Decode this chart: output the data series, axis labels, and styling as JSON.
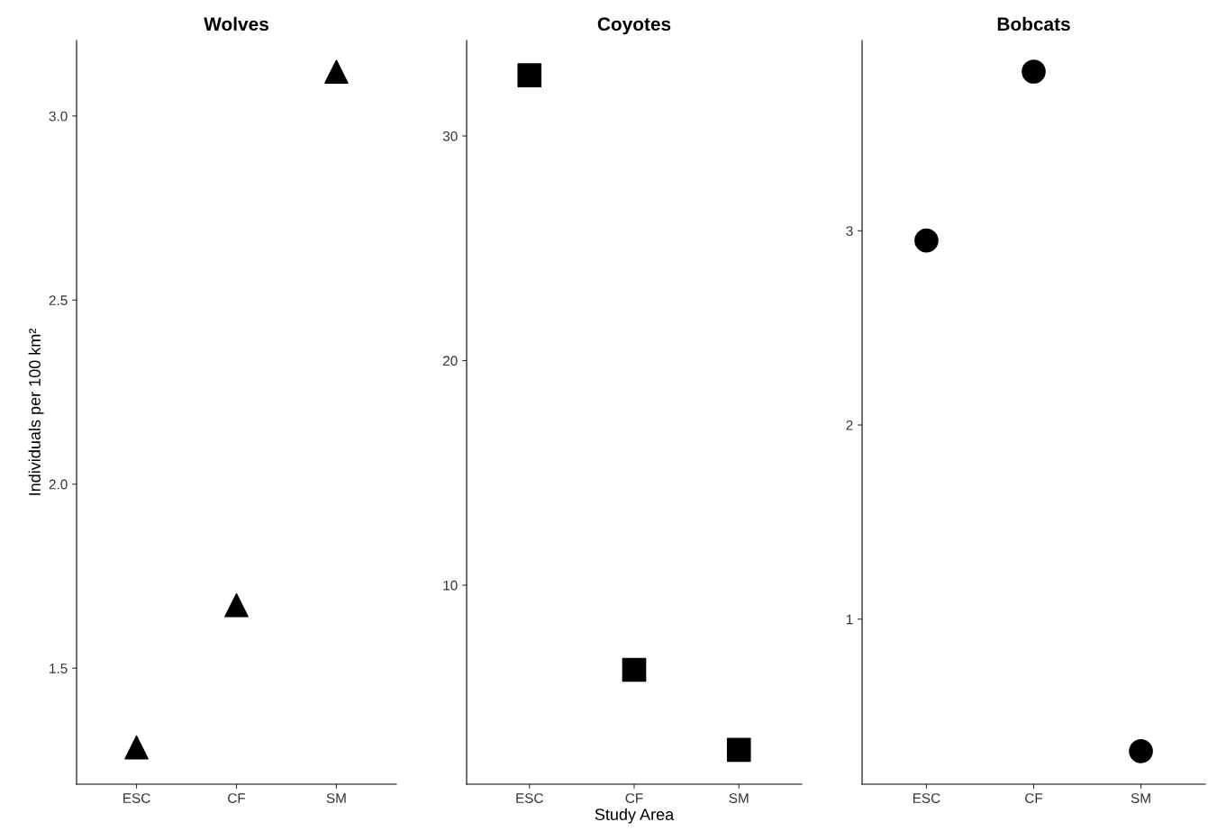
{
  "chart_data": [
    {
      "type": "scatter",
      "title": "Wolves",
      "ylabel": "Individuals per 100 km²",
      "categories": [
        "ESC",
        "CF",
        "SM"
      ],
      "series": [
        {
          "color": "#000000",
          "values": [
            1.285,
            1.671,
            3.12
          ]
        }
      ],
      "marker": "triangle",
      "ylim": [
        1.185,
        3.205
      ],
      "yticks": [
        {
          "value": 1.5,
          "label": "1.5"
        },
        {
          "value": 2.0,
          "label": "2.0"
        },
        {
          "value": 2.5,
          "label": "2.5"
        },
        {
          "value": 3.0,
          "label": "3.0"
        }
      ],
      "grid": false,
      "legend": false
    },
    {
      "type": "scatter",
      "title": "Coyotes",
      "xlabel": "Study Area",
      "categories": [
        "ESC",
        "CF",
        "SM"
      ],
      "series": [
        {
          "color": "#000000",
          "values": [
            32.7,
            6.23,
            2.67
          ]
        }
      ],
      "marker": "square",
      "ylim": [
        1.14,
        34.25
      ],
      "yticks": [
        10,
        20,
        30
      ],
      "grid": false,
      "legend": false
    },
    {
      "type": "scatter",
      "title": "Bobcats",
      "categories": [
        "ESC",
        "CF",
        "SM"
      ],
      "series": [
        {
          "color": "#000000",
          "values": [
            2.95,
            3.82,
            0.32
          ]
        }
      ],
      "marker": "circle",
      "ylim": [
        0.15,
        3.98
      ],
      "yticks": [
        1,
        2,
        3
      ],
      "grid": false,
      "legend": false
    }
  ]
}
